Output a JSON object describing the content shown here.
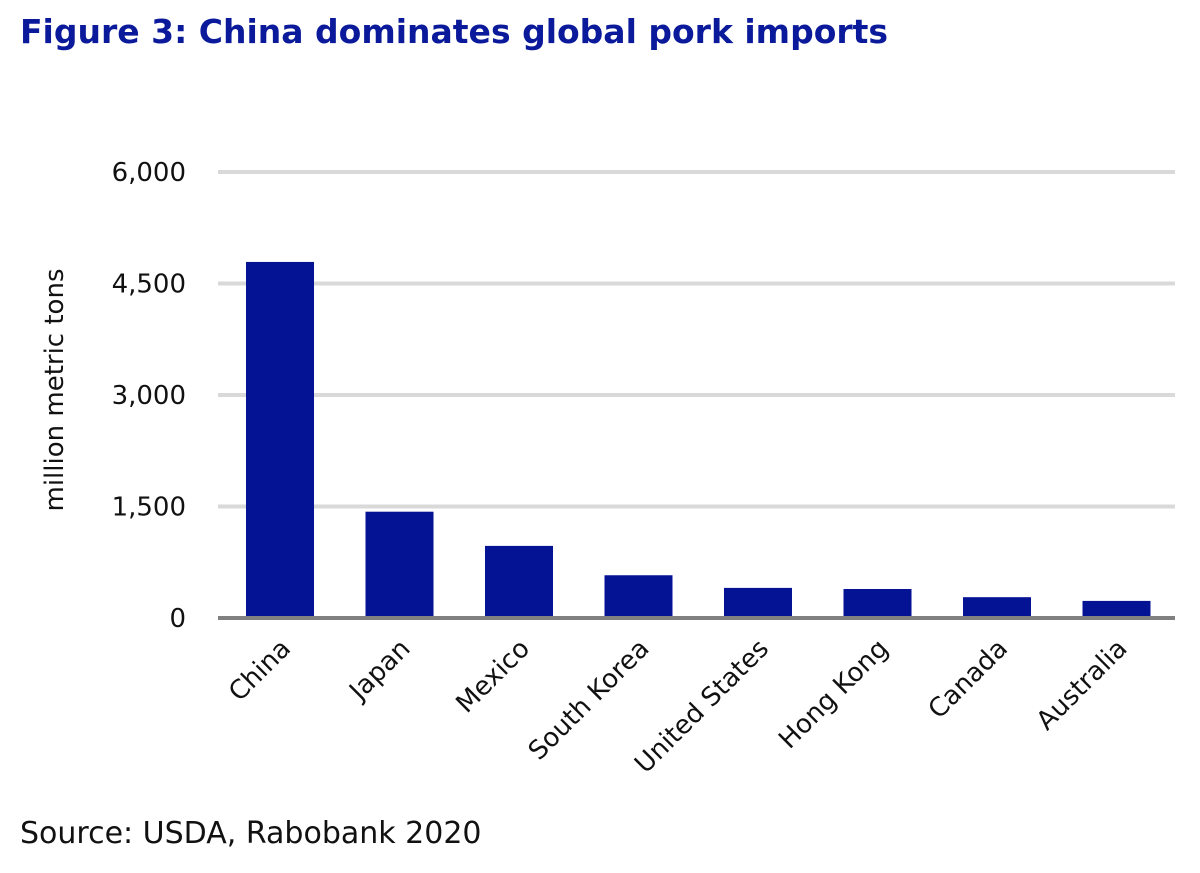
{
  "chart_data": {
    "type": "bar",
    "title": "Figure 3: China dominates global pork imports",
    "ylabel": "million metric tons",
    "xlabel": "",
    "categories": [
      "China",
      "Japan",
      "Mexico",
      "South Korea",
      "United States",
      "Hong Kong",
      "Canada",
      "Australia"
    ],
    "values": [
      4790,
      1430,
      970,
      575,
      405,
      390,
      280,
      230
    ],
    "ylim": [
      0,
      6000
    ],
    "yticks": [
      "0",
      "1,500",
      "3,000",
      "4,500",
      "6,000"
    ],
    "ytick_values": [
      0,
      1500,
      3000,
      4500,
      6000
    ],
    "grid": true,
    "legend": "none",
    "bar_color": "#041294",
    "source": "Source: USDA, Rabobank 2020"
  }
}
